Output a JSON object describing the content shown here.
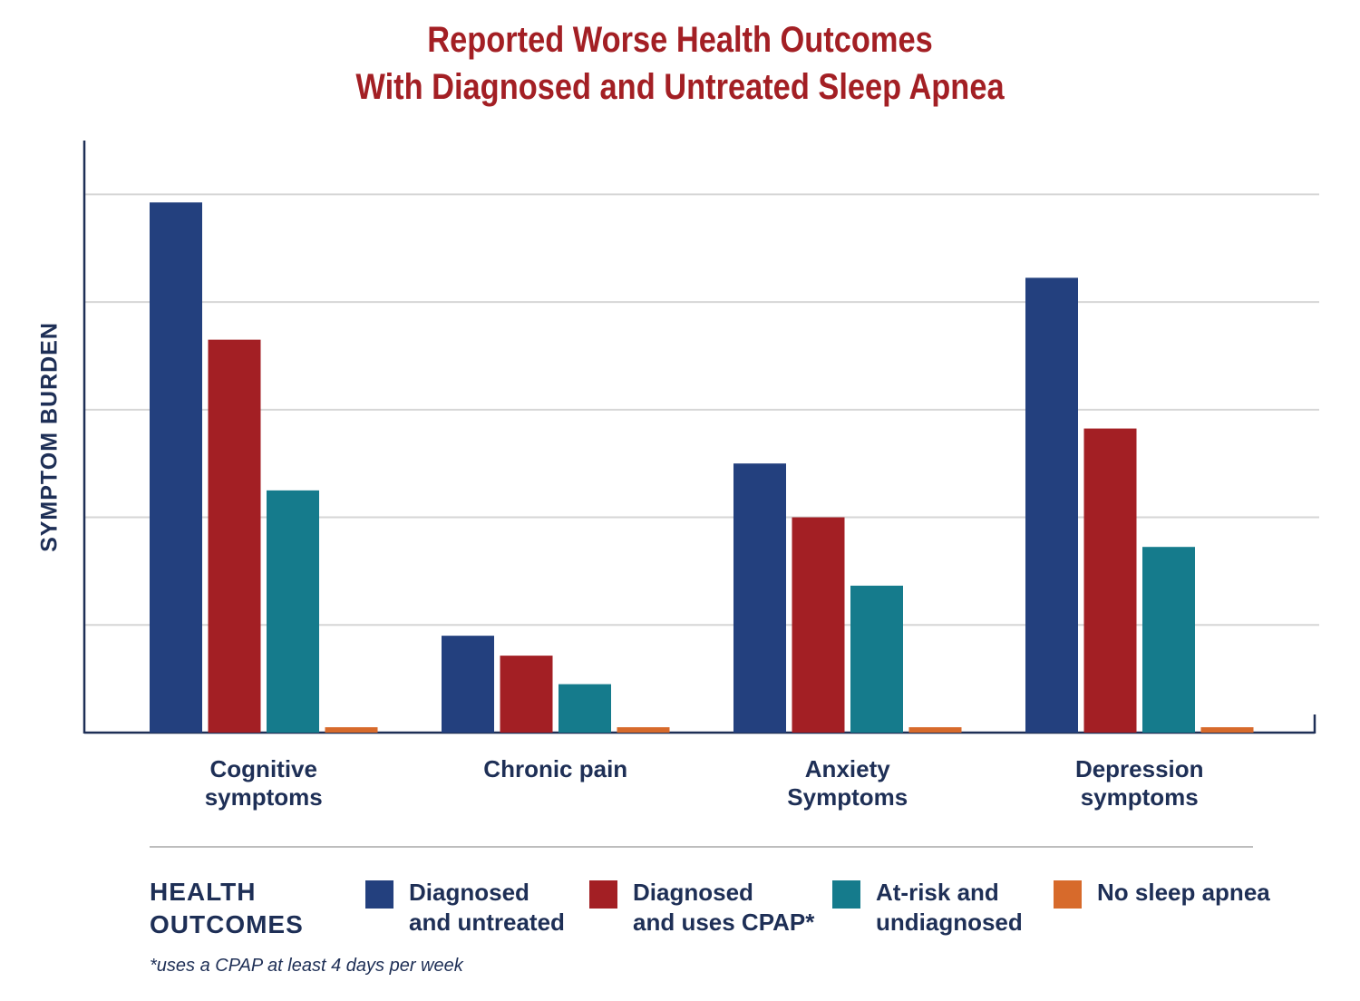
{
  "chart_data": {
    "type": "bar",
    "title_line1": "Reported Worse Health Outcomes",
    "title_line2": "With Diagnosed and Untreated Sleep Apnea",
    "ylabel": "SYMPTOM BURDEN",
    "categories": [
      [
        "Cognitive",
        "symptoms"
      ],
      [
        "Chronic pain",
        ""
      ],
      [
        "Anxiety",
        "Symptoms"
      ],
      [
        "Depression",
        "symptoms"
      ]
    ],
    "series": [
      {
        "name": [
          "Diagnosed",
          "and untreated"
        ],
        "color": "#23407e",
        "values": [
          98.5,
          18,
          50,
          84.5
        ]
      },
      {
        "name": [
          "Diagnosed",
          "and uses CPAP*"
        ],
        "color": "#a31f24",
        "values": [
          73,
          14.3,
          40,
          56.5
        ]
      },
      {
        "name": [
          "At-risk and",
          "undiagnosed"
        ],
        "color": "#157b8c",
        "values": [
          45,
          9,
          27.3,
          34.5
        ]
      },
      {
        "name": [
          "No sleep apnea",
          ""
        ],
        "color": "#d76a2b",
        "values": [
          1,
          1,
          1,
          1
        ]
      }
    ],
    "ylim": [
      0,
      110
    ],
    "gridlines": [
      20,
      40,
      60,
      80,
      100
    ],
    "grid": true,
    "y_ticks_shown": false,
    "legend_placement": "bottom"
  },
  "legend": {
    "title_line1": "HEALTH",
    "title_line2": "OUTCOMES"
  },
  "footnote": "*uses a CPAP at least 4 days per week"
}
